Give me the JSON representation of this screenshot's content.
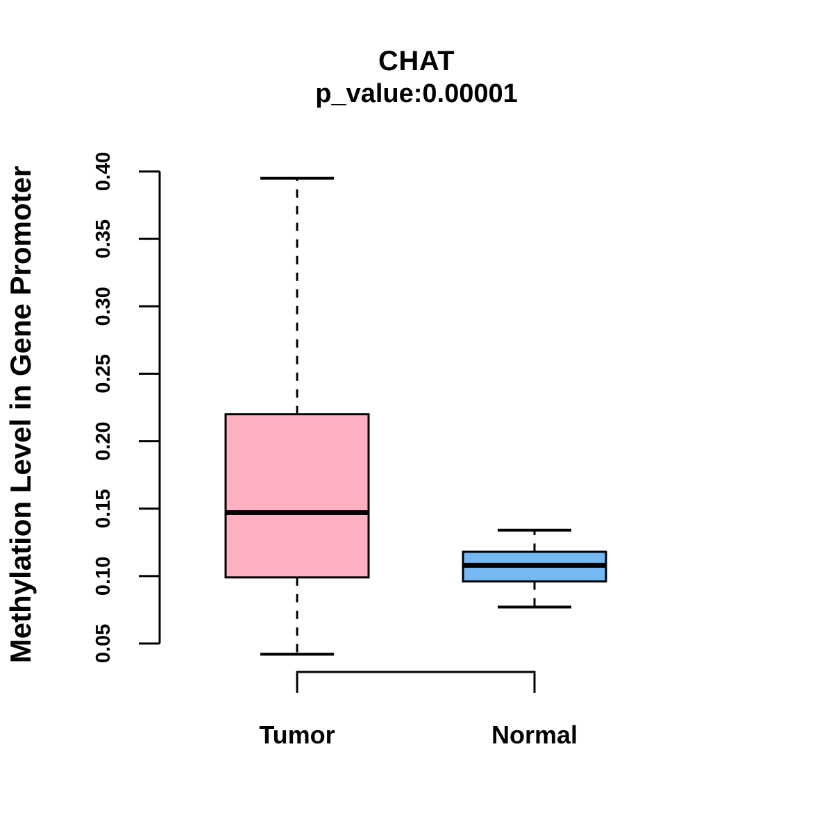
{
  "chart_data": {
    "type": "boxplot",
    "title": "CHAT",
    "subtitle": "p_value:0.00001",
    "ylabel": "Methylation Level in Gene Promoter",
    "xlabel": "",
    "ylim": [
      0.05,
      0.4
    ],
    "yticks": [
      0.05,
      0.1,
      0.15,
      0.2,
      0.25,
      0.3,
      0.35,
      0.4
    ],
    "ytick_labels": [
      "0.05",
      "0.10",
      "0.15",
      "0.20",
      "0.25",
      "0.30",
      "0.35",
      "0.40"
    ],
    "grid": "off",
    "legend": "none",
    "groups": [
      {
        "label": "Tumor",
        "fill_color": "#FFB1C1",
        "border_color": "#000000",
        "whisker_low": 0.042,
        "q1": 0.099,
        "median": 0.147,
        "q3": 0.22,
        "whisker_high": 0.395,
        "whisker_style": "dashed"
      },
      {
        "label": "Normal",
        "fill_color": "#74B9F4",
        "border_color": "#000000",
        "whisker_low": 0.077,
        "q1": 0.096,
        "median": 0.108,
        "q3": 0.118,
        "whisker_high": 0.134,
        "whisker_style": "dashed"
      }
    ],
    "comparison_bracket": {
      "between": [
        "Tumor",
        "Normal"
      ],
      "position": "below-axis",
      "opening": "downward"
    },
    "colors": {
      "axis": "#000000",
      "text": "#000000",
      "background": "#FFFFFF"
    }
  }
}
